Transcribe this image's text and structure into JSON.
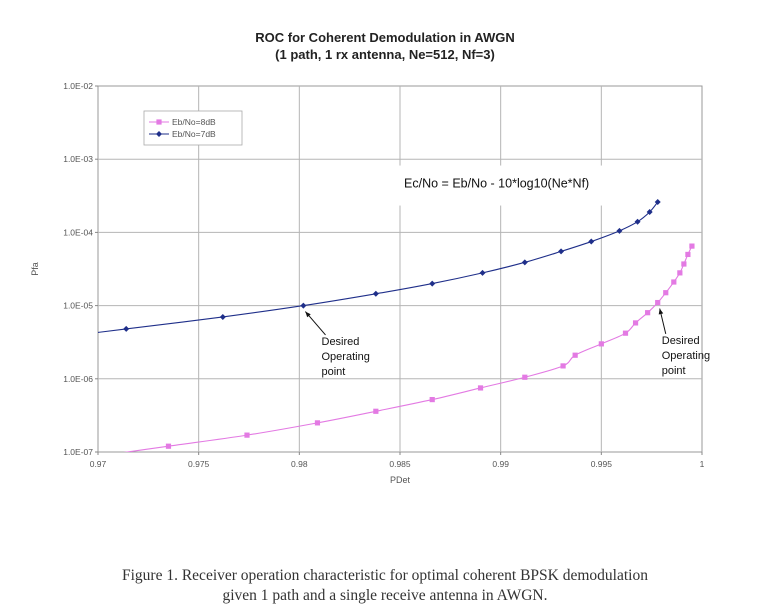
{
  "chart_data": {
    "type": "line",
    "title": "ROC for Coherent Demodulation in AWGN",
    "subtitle": "(1 path, 1 rx antenna, Ne=512, Nf=3)",
    "xlabel": "PDet",
    "ylabel": "Pfa",
    "xlim": [
      0.97,
      1.0
    ],
    "ylim": [
      1e-07,
      0.01
    ],
    "y_scale": "log",
    "x_ticks": [
      0.97,
      0.975,
      0.98,
      0.985,
      0.99,
      0.995,
      1.0
    ],
    "x_tick_labels": [
      "0.97",
      "0.975",
      "0.98",
      "0.985",
      "0.99",
      "0.995",
      "1"
    ],
    "y_ticks": [
      1e-07,
      1e-06,
      1e-05,
      0.0001,
      0.001,
      0.01
    ],
    "y_tick_labels": [
      "1.0E-07",
      "1.0E-06",
      "1.0E-05",
      "1.0E-04",
      "1.0E-03",
      "1.0E-02"
    ],
    "grid": true,
    "legend_position": "top-left",
    "series": [
      {
        "name": "Eb/No=8dB",
        "color": "#e37ae3",
        "marker": "square",
        "points": [
          [
            0.9735,
            1.2e-07
          ],
          [
            0.9774,
            1.7e-07
          ],
          [
            0.9809,
            2.5e-07
          ],
          [
            0.9838,
            3.6e-07
          ],
          [
            0.9866,
            5.2e-07
          ],
          [
            0.989,
            7.5e-07
          ],
          [
            0.9912,
            1.05e-06
          ],
          [
            0.9931,
            1.5e-06
          ],
          [
            0.9937,
            2.1e-06
          ],
          [
            0.995,
            3e-06
          ],
          [
            0.9962,
            4.2e-06
          ],
          [
            0.9967,
            5.8e-06
          ],
          [
            0.9973,
            8e-06
          ],
          [
            0.9978,
            1.1e-05
          ],
          [
            0.9982,
            1.5e-05
          ],
          [
            0.9986,
            2.1e-05
          ],
          [
            0.9989,
            2.8e-05
          ],
          [
            0.9991,
            3.7e-05
          ],
          [
            0.9993,
            5e-05
          ],
          [
            0.9995,
            6.5e-05
          ]
        ]
      },
      {
        "name": "Eb/No=7dB",
        "color": "#1f2f8a",
        "marker": "diamond",
        "points": [
          [
            0.9714,
            4.8e-06
          ],
          [
            0.9762,
            7e-06
          ],
          [
            0.9802,
            1e-05
          ],
          [
            0.9838,
            1.45e-05
          ],
          [
            0.9866,
            2e-05
          ],
          [
            0.9891,
            2.8e-05
          ],
          [
            0.9912,
            3.9e-05
          ],
          [
            0.993,
            5.5e-05
          ],
          [
            0.9945,
            7.5e-05
          ],
          [
            0.9959,
            0.000105
          ],
          [
            0.9968,
            0.00014
          ],
          [
            0.9974,
            0.00019
          ],
          [
            0.9978,
            0.00026
          ]
        ]
      }
    ],
    "annotations": [
      {
        "lines": [
          "Ec/No = Eb/No - 10*log10(Ne*Nf)"
        ],
        "kind": "formula",
        "anchor": [
          0.9898,
          0.00041
        ]
      },
      {
        "lines": [
          "Desired",
          "Operating",
          "point"
        ],
        "kind": "arrow",
        "target": [
          0.9802,
          1e-05
        ],
        "anchor": [
          0.9813,
          2.9e-06
        ]
      },
      {
        "lines": [
          "Desired",
          "Operating",
          "point"
        ],
        "kind": "arrow",
        "target": [
          0.9978,
          1.1e-05
        ],
        "anchor": [
          0.9982,
          3e-06
        ]
      }
    ]
  },
  "caption": {
    "line1": "Figure 1.  Receiver operation characteristic for optimal coherent BPSK demodulation",
    "line2": "given 1 path and a single receive antenna in AWGN."
  }
}
